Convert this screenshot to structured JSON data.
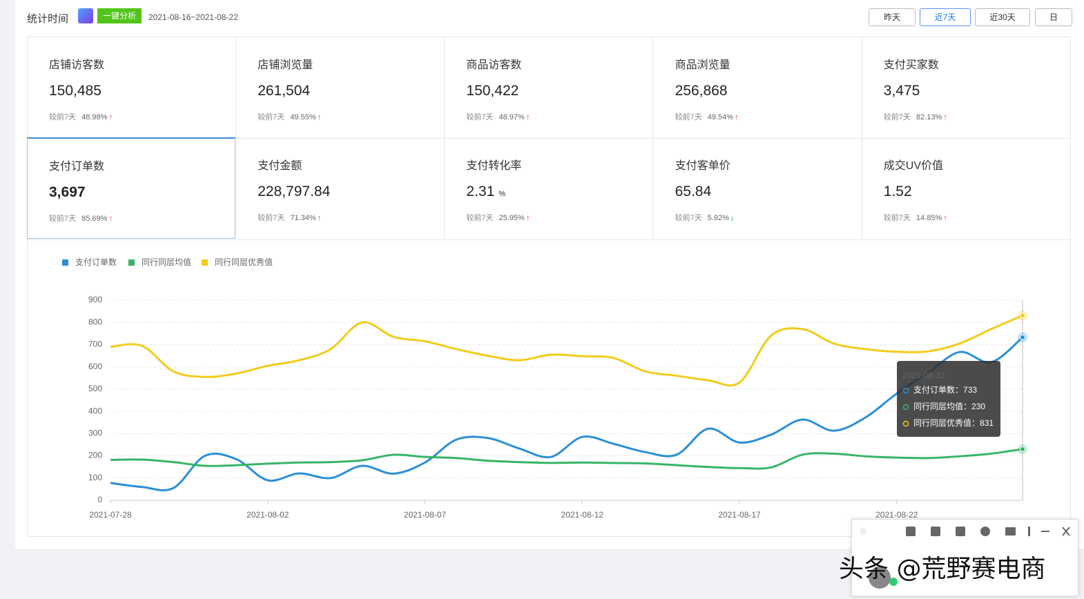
{
  "header": {
    "label": "统计时间",
    "badge": "一键分析",
    "date_range": "2021-08-16~2021-08-22",
    "buttons": [
      "昨天",
      "近7天",
      "近30天",
      "日"
    ],
    "active_button": 1
  },
  "cards": [
    {
      "title": "店铺访客数",
      "value": "150,485",
      "compare": "较前7天",
      "change": "48.98%",
      "direction": "up"
    },
    {
      "title": "店铺浏览量",
      "value": "261,504",
      "compare": "较前7天",
      "change": "49.55%",
      "direction": "up"
    },
    {
      "title": "商品访客数",
      "value": "150,422",
      "compare": "较前7天",
      "change": "48.97%",
      "direction": "up"
    },
    {
      "title": "商品浏览量",
      "value": "256,868",
      "compare": "较前7天",
      "change": "49.54%",
      "direction": "up"
    },
    {
      "title": "支付买家数",
      "value": "3,475",
      "compare": "较前7天",
      "change": "82.13%",
      "direction": "up"
    },
    {
      "title": "支付订单数",
      "value": "3,697",
      "compare": "较前7天",
      "change": "85.69%",
      "direction": "up",
      "selected": true
    },
    {
      "title": "支付金额",
      "value": "228,797.84",
      "compare": "较前7天",
      "change": "71.34%",
      "direction": "up"
    },
    {
      "title": "支付转化率",
      "value": "2.31",
      "unit": "%",
      "compare": "较前7天",
      "change": "25.95%",
      "direction": "up"
    },
    {
      "title": "支付客单价",
      "value": "65.84",
      "compare": "较前7天",
      "change": "5.92%",
      "direction": "down"
    },
    {
      "title": "成交UV价值",
      "value": "1.52",
      "compare": "较前7天",
      "change": "14.85%",
      "direction": "up"
    }
  ],
  "chart_data": {
    "type": "line",
    "categories": [
      "2021-07-28",
      null,
      null,
      null,
      null,
      "2021-08-02",
      null,
      null,
      null,
      null,
      "2021-08-07",
      null,
      null,
      null,
      null,
      "2021-08-12",
      null,
      null,
      null,
      null,
      "2021-08-17",
      null,
      null,
      null,
      null,
      "2021-08-22",
      null,
      null,
      null,
      null
    ],
    "series": [
      {
        "name": "支付订单数",
        "color": "#2a8fd6",
        "values": [
          78,
          60,
          55,
          200,
          185,
          90,
          121,
          100,
          155,
          120,
          170,
          273,
          280,
          233,
          195,
          285,
          254,
          217,
          205,
          322,
          260,
          295,
          363,
          313,
          372,
          480,
          574,
          667,
          621,
          733
        ]
      },
      {
        "name": "同行同层均值",
        "color": "#36b566",
        "values": [
          182,
          183,
          172,
          155,
          158,
          165,
          170,
          172,
          180,
          205,
          195,
          190,
          178,
          172,
          168,
          170,
          168,
          166,
          158,
          150,
          145,
          148,
          205,
          210,
          198,
          192,
          190,
          198,
          210,
          230
        ]
      },
      {
        "name": "同行同层优秀值",
        "color": "#f2cb1d",
        "values": [
          690,
          695,
          580,
          555,
          570,
          605,
          630,
          680,
          800,
          735,
          715,
          680,
          650,
          630,
          655,
          648,
          640,
          580,
          560,
          540,
          530,
          740,
          770,
          705,
          680,
          668,
          670,
          705,
          770,
          831
        ]
      }
    ],
    "ylim": [
      0,
      900
    ],
    "yticks": [
      0,
      100,
      200,
      300,
      400,
      500,
      600,
      700,
      800,
      900
    ],
    "grid": true,
    "tooltip": {
      "title": "2021-08-22",
      "separator": "："
    }
  },
  "watermark": "头条 @荒野赛电商"
}
